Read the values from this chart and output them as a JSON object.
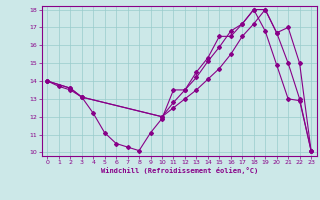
{
  "xlabel": "Windchill (Refroidissement éolien,°C)",
  "background_color": "#cce8e8",
  "line_color": "#880088",
  "grid_color": "#99cccc",
  "xlim": [
    -0.5,
    23.5
  ],
  "ylim": [
    9.8,
    18.2
  ],
  "xticks": [
    0,
    1,
    2,
    3,
    4,
    5,
    6,
    7,
    8,
    9,
    10,
    11,
    12,
    13,
    14,
    15,
    16,
    17,
    18,
    19,
    20,
    21,
    22,
    23
  ],
  "yticks": [
    10,
    11,
    12,
    13,
    14,
    15,
    16,
    17,
    18
  ],
  "line1_x": [
    0,
    1,
    2,
    3,
    4,
    5,
    6,
    7,
    8,
    9,
    10,
    11,
    12,
    13,
    14,
    15,
    16,
    17,
    18,
    19,
    20,
    21,
    22,
    23
  ],
  "line1_y": [
    14,
    13.7,
    13.5,
    13.1,
    12.2,
    11.1,
    10.5,
    10.3,
    10.1,
    11.1,
    11.9,
    13.5,
    13.5,
    14.5,
    15.3,
    16.5,
    16.5,
    17.2,
    18.0,
    16.8,
    14.9,
    13.0,
    12.9,
    10.1
  ],
  "line2_x": [
    0,
    2,
    3,
    10,
    11,
    12,
    13,
    14,
    15,
    16,
    17,
    18,
    19,
    20,
    21,
    22,
    23
  ],
  "line2_y": [
    14,
    13.6,
    13.1,
    12.0,
    12.8,
    13.5,
    14.2,
    15.1,
    15.9,
    16.8,
    17.2,
    18.0,
    18.0,
    16.7,
    17.0,
    15.0,
    10.1
  ],
  "line3_x": [
    0,
    2,
    3,
    10,
    11,
    12,
    13,
    14,
    15,
    16,
    17,
    18,
    19,
    20,
    21,
    22,
    23
  ],
  "line3_y": [
    14,
    13.6,
    13.1,
    12.0,
    12.5,
    13.0,
    13.5,
    14.1,
    14.7,
    15.5,
    16.5,
    17.2,
    18.0,
    16.7,
    15.0,
    13.0,
    10.1
  ]
}
